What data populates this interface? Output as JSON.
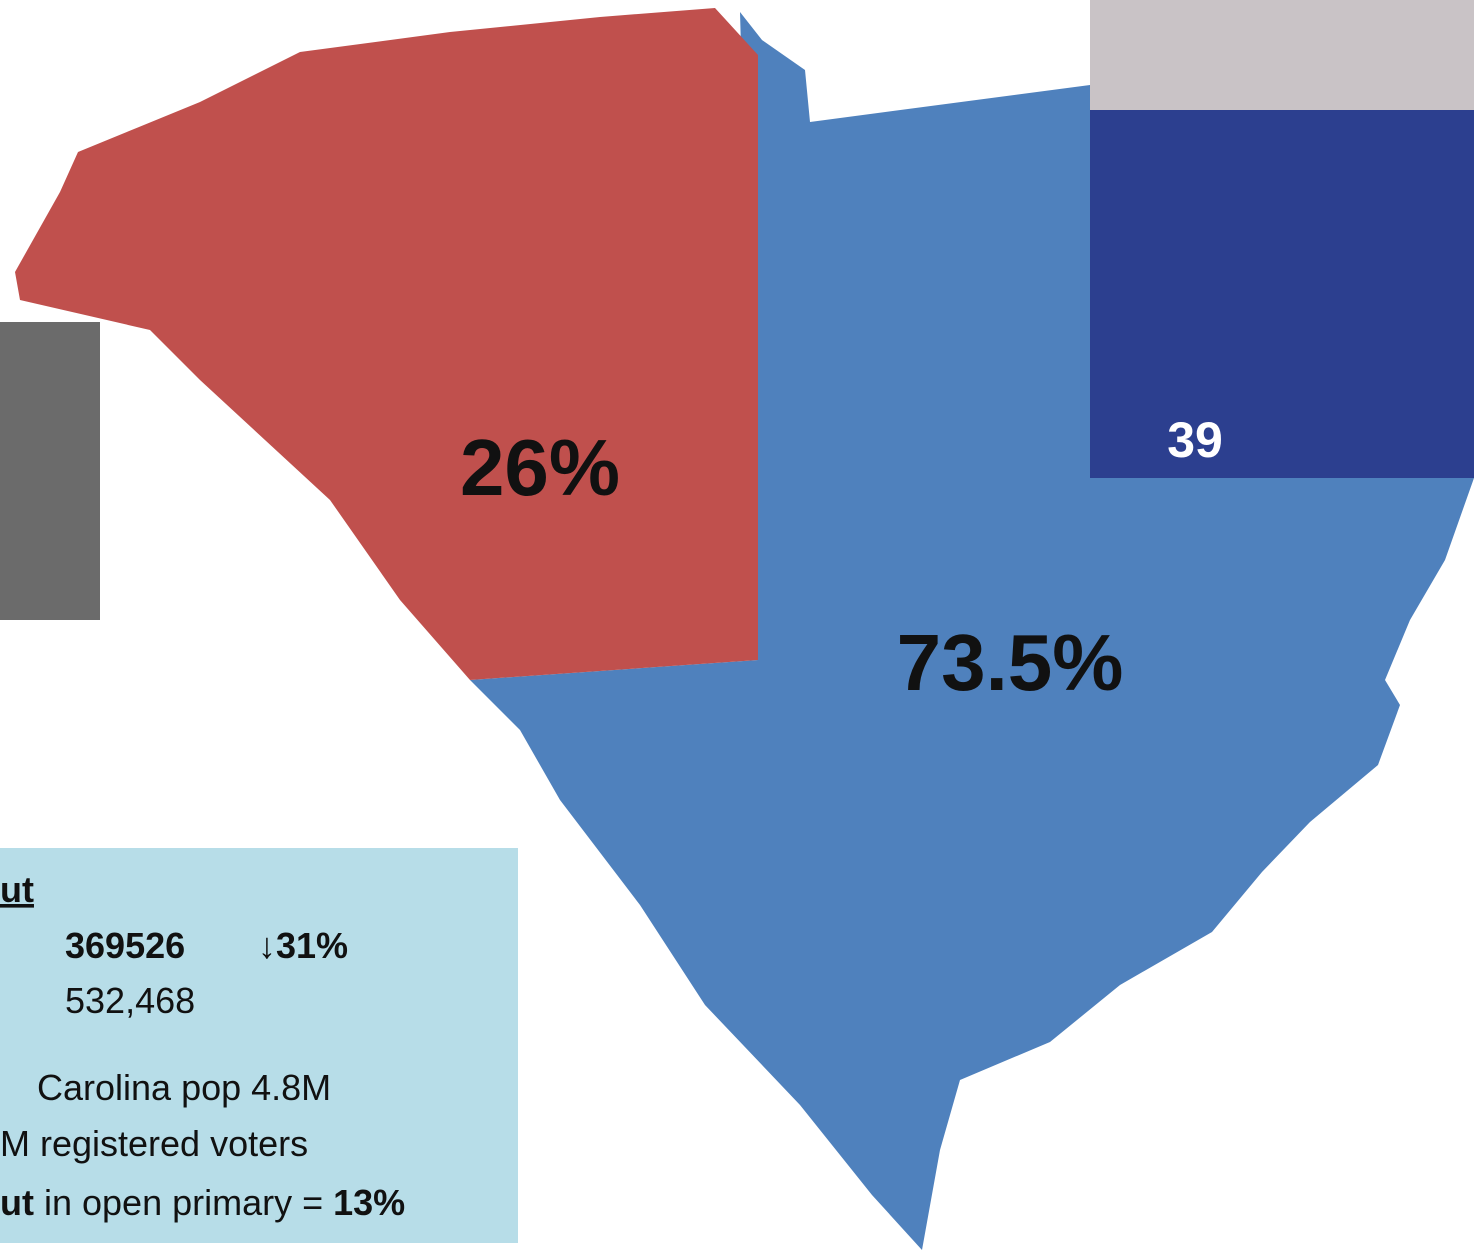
{
  "map": {
    "regions": [
      {
        "label": "26%",
        "color": "#c0504d"
      },
      {
        "label": "73.5%",
        "color": "#4f81bd"
      }
    ],
    "photo_badge": "39",
    "info": {
      "heading": "ut",
      "count": "369526",
      "change": "↓31%",
      "previous": "532,468",
      "population": "Carolina pop 4.8M",
      "registered": "M registered voters",
      "turnout": {
        "lead": "ut",
        "text": " in open primary = ",
        "value": "13%"
      }
    }
  }
}
